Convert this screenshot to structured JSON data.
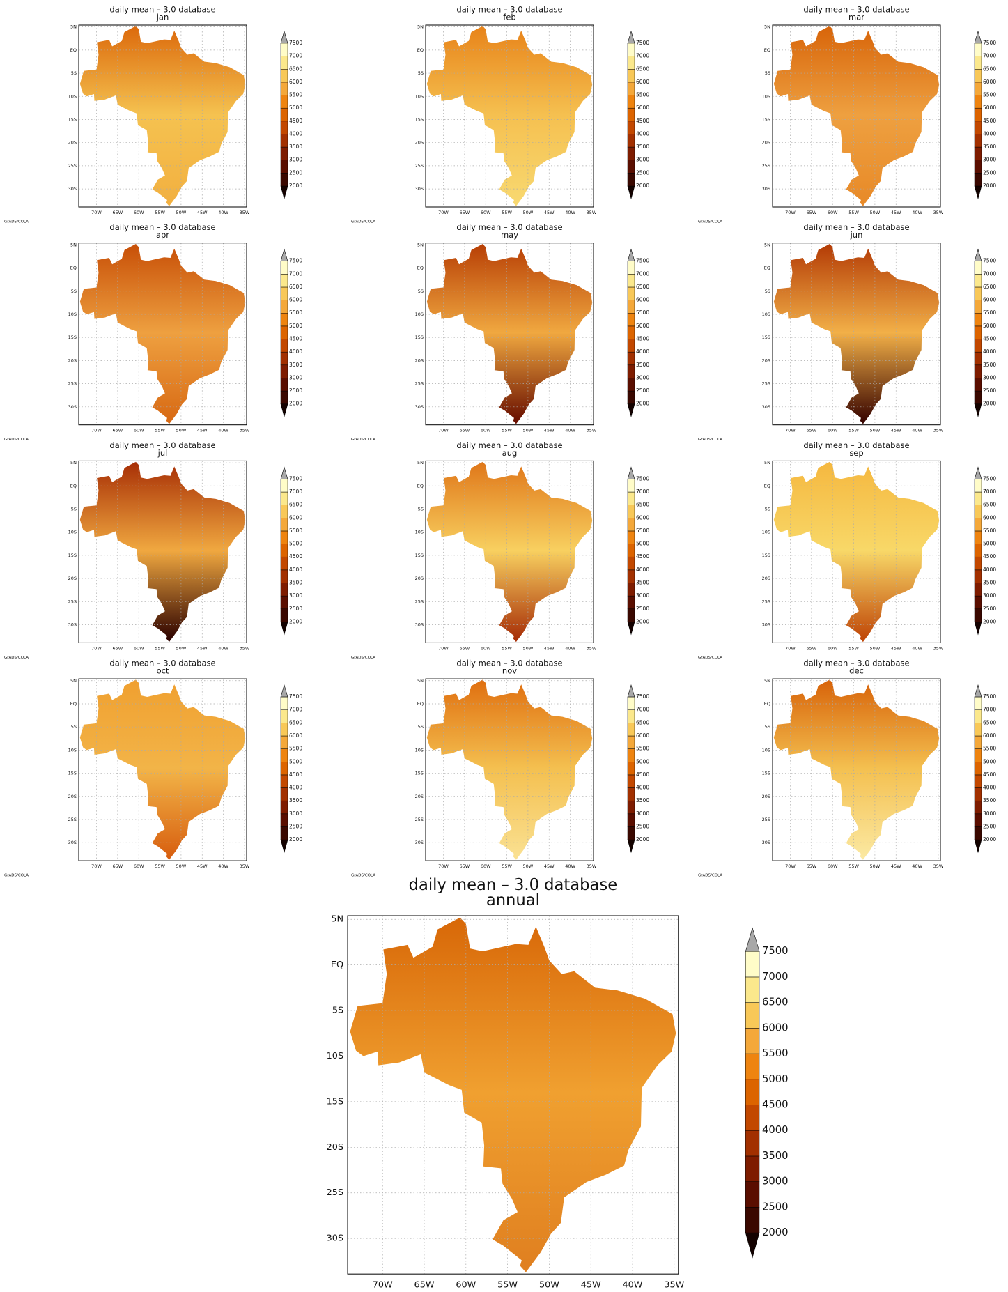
{
  "title": "daily mean – 3.0 database",
  "credit": "GrADS/COLA",
  "xlim": [
    -74.2,
    -34.5
  ],
  "ylim": [
    -33.9,
    5.4
  ],
  "lat_ticks": [
    {
      "value": 5,
      "label": "5N"
    },
    {
      "value": 0,
      "label": "EQ"
    },
    {
      "value": -5,
      "label": "5S"
    },
    {
      "value": -10,
      "label": "10S"
    },
    {
      "value": -15,
      "label": "15S"
    },
    {
      "value": -20,
      "label": "20S"
    },
    {
      "value": -25,
      "label": "25S"
    },
    {
      "value": -30,
      "label": "30S"
    }
  ],
  "lon_ticks": [
    {
      "value": -70,
      "label": "70W"
    },
    {
      "value": -65,
      "label": "65W"
    },
    {
      "value": -60,
      "label": "60W"
    },
    {
      "value": -55,
      "label": "55W"
    },
    {
      "value": -50,
      "label": "50W"
    },
    {
      "value": -45,
      "label": "45W"
    },
    {
      "value": -40,
      "label": "40W"
    },
    {
      "value": -35,
      "label": "35W"
    }
  ],
  "colorbar": {
    "levels": [
      2000,
      2500,
      3000,
      3500,
      4000,
      4500,
      5000,
      5500,
      6000,
      6500,
      7000,
      7500
    ],
    "colors": [
      "#3a0800",
      "#5a0e00",
      "#7e1c00",
      "#a23000",
      "#c24800",
      "#dc6400",
      "#ee8410",
      "#f4a83a",
      "#f8c858",
      "#fbe88c",
      "#fffcc8"
    ],
    "under_color": "#140200",
    "over_color": "#a8a8a8"
  },
  "panels": [
    {
      "label": "jan",
      "shading": [
        "#dc6a0c",
        "#f5c250",
        "#f2b040"
      ]
    },
    {
      "label": "feb",
      "shading": [
        "#e8841a",
        "#f5c050",
        "#f8d870"
      ]
    },
    {
      "label": "mar",
      "shading": [
        "#d8650a",
        "#eea040",
        "#e88a28"
      ]
    },
    {
      "label": "apr",
      "shading": [
        "#c85008",
        "#eea040",
        "#d86a14"
      ]
    },
    {
      "label": "may",
      "shading": [
        "#b84006",
        "#f0a840",
        "#6a1000"
      ]
    },
    {
      "label": "jun",
      "shading": [
        "#b43c06",
        "#f2b048",
        "#3a0600"
      ]
    },
    {
      "label": "jul",
      "shading": [
        "#a83006",
        "#f0a840",
        "#300400"
      ]
    },
    {
      "label": "aug",
      "shading": [
        "#e0781a",
        "#f8d060",
        "#a83008"
      ]
    },
    {
      "label": "sep",
      "shading": [
        "#f5b840",
        "#f8d868",
        "#c04808"
      ]
    },
    {
      "label": "oct",
      "shading": [
        "#f0a030",
        "#f2b448",
        "#d86010"
      ]
    },
    {
      "label": "nov",
      "shading": [
        "#e07010",
        "#f4c050",
        "#fae090"
      ]
    },
    {
      "label": "dec",
      "shading": [
        "#d8640a",
        "#f4c050",
        "#fbe8a0"
      ]
    },
    {
      "label": "annual",
      "shading": [
        "#d86808",
        "#f0a030",
        "#e08020"
      ]
    }
  ]
}
